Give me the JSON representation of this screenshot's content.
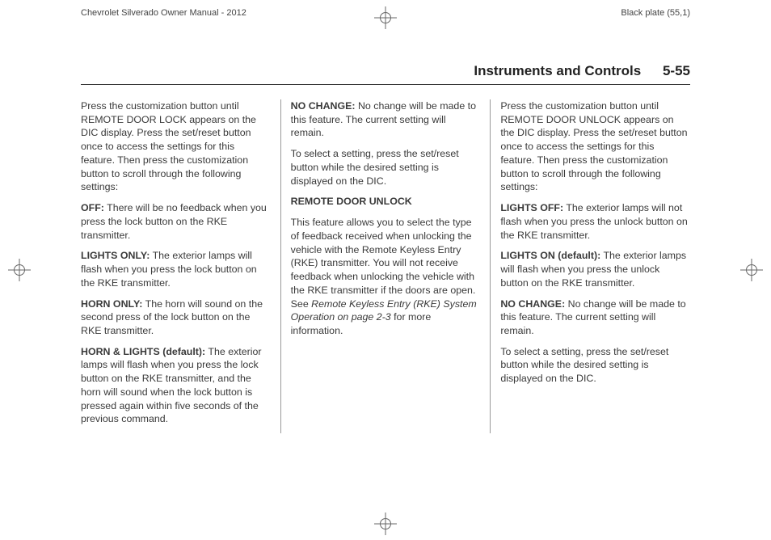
{
  "header": {
    "left": "Chevrolet Silverado Owner Manual - 2012",
    "right": "Black plate (55,1)"
  },
  "running_head": {
    "title": "Instruments and Controls",
    "page": "5-55"
  },
  "col1": {
    "p1": "Press the customization button until REMOTE DOOR LOCK appears on the DIC display. Press the set/reset button once to access the settings for this feature. Then press the customization button to scroll through the following settings:",
    "off_label": "OFF:",
    "off_text": " There will be no feedback when you press the lock button on the RKE transmitter.",
    "lights_only_label": "LIGHTS ONLY:",
    "lights_only_text": " The exterior lamps will flash when you press the lock button on the RKE transmitter.",
    "horn_only_label": "HORN ONLY:",
    "horn_only_text": " The horn will sound on the second press of the lock button on the RKE transmitter.",
    "horn_lights_label": "HORN & LIGHTS (default):",
    "horn_lights_text": " The exterior lamps will flash when you press the lock button on the RKE transmitter, and the horn will sound when the lock button is pressed again within five seconds of the previous command."
  },
  "col2": {
    "no_change_label": "NO CHANGE:",
    "no_change_text": " No change will be made to this feature. The current setting will remain.",
    "select_text": "To select a setting, press the set/reset button while the desired setting is displayed on the DIC.",
    "subhead": "REMOTE DOOR UNLOCK",
    "body_a": "This feature allows you to select the type of feedback received when unlocking the vehicle with the Remote Keyless Entry (RKE) transmitter. You will not receive feedback when unlocking the vehicle with the RKE transmitter if the doors are open. See ",
    "body_ital": "Remote Keyless Entry (RKE) System Operation on page 2‑3",
    "body_b": " for more information."
  },
  "col3": {
    "p1": "Press the customization button until REMOTE DOOR UNLOCK appears on the DIC display. Press the set/reset button once to access the settings for this feature. Then press the customization button to scroll through the following settings:",
    "lights_off_label": "LIGHTS OFF:",
    "lights_off_text": " The exterior lamps will not flash when you press the unlock button on the RKE transmitter.",
    "lights_on_label": "LIGHTS ON (default):",
    "lights_on_text": " The exterior lamps will flash when you press the unlock button on the RKE transmitter.",
    "no_change_label": "NO CHANGE:",
    "no_change_text": " No change will be made to this feature. The current setting will remain.",
    "select_text": "To select a setting, press the set/reset button while the desired setting is displayed on the DIC."
  }
}
